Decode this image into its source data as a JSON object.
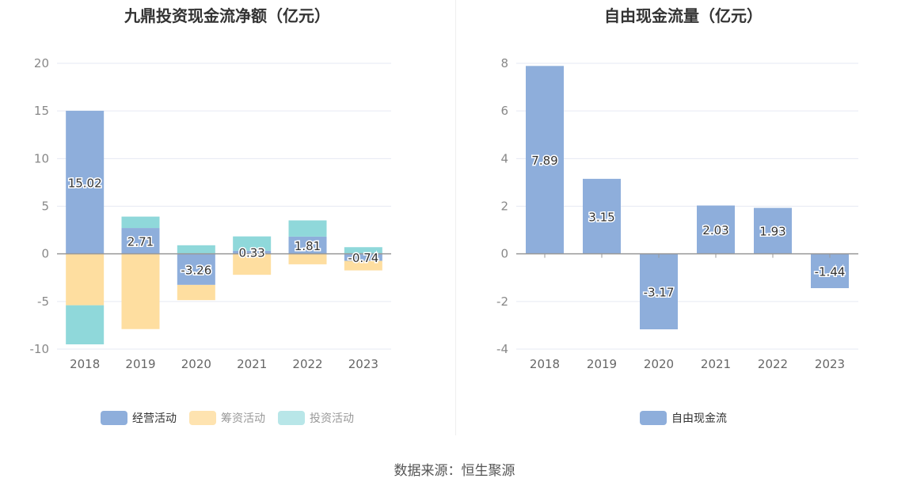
{
  "source": "数据来源：恒生聚源",
  "chart_data": [
    {
      "type": "bar",
      "stacked": true,
      "title": "九鼎投资现金流净额（亿元）",
      "categories": [
        "2018",
        "2019",
        "2020",
        "2021",
        "2022",
        "2023"
      ],
      "ylim": [
        -10,
        20
      ],
      "yticks": [
        "20",
        "15",
        "10",
        "5",
        "0",
        "-5",
        "-10"
      ],
      "grid": true,
      "legend_position": "bottom",
      "series": [
        {
          "name": "经营活动",
          "color": "#8eaedb",
          "values": [
            15.02,
            2.71,
            -3.26,
            0.33,
            1.81,
            -0.74
          ],
          "labels": [
            "15.02",
            "2.71",
            "-3.26",
            "0.33",
            "1.81",
            "-0.74"
          ]
        },
        {
          "name": "筹资活动",
          "color": "#fedea0",
          "values": [
            -5.4,
            -7.9,
            -1.6,
            -2.2,
            -1.1,
            -1.0
          ]
        },
        {
          "name": "投资活动",
          "color": "#8fd8da",
          "values": [
            -4.1,
            1.2,
            0.9,
            1.5,
            1.7,
            0.7
          ]
        }
      ]
    },
    {
      "type": "bar",
      "title": "自由现金流量（亿元）",
      "categories": [
        "2018",
        "2019",
        "2020",
        "2021",
        "2022",
        "2023"
      ],
      "ylim": [
        -4,
        8
      ],
      "yticks": [
        "8",
        "6",
        "4",
        "2",
        "0",
        "-2",
        "-4"
      ],
      "grid": true,
      "legend_position": "bottom",
      "series": [
        {
          "name": "自由现金流",
          "color": "#8eaedb",
          "values": [
            7.89,
            3.15,
            -3.17,
            2.03,
            1.93,
            -1.44
          ],
          "labels": [
            "7.89",
            "3.15",
            "-3.17",
            "2.03",
            "1.93",
            "-1.44"
          ]
        }
      ]
    }
  ]
}
